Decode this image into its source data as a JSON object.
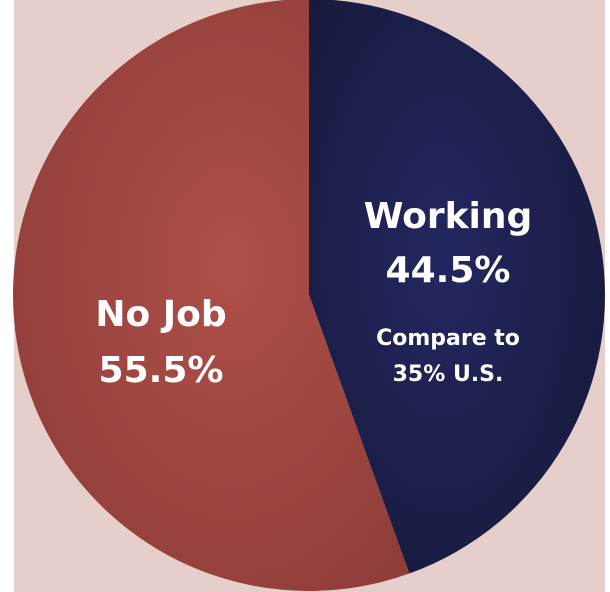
{
  "colors": {
    "background_panel": "#E6CFCA",
    "no_job_slice": "#A54943",
    "working_slice": "#1B1E4B",
    "label_text": "#FFFFFF"
  },
  "chart_data": {
    "type": "pie",
    "title": "",
    "slices": [
      {
        "label": "Working",
        "value": 44.5,
        "value_label": "44.5%",
        "note": "Compare to\n35% U.S."
      },
      {
        "label": "No Job",
        "value": 55.5,
        "value_label": "55.5%"
      }
    ],
    "note_lines": [
      "Compare to",
      "35% U.S."
    ]
  }
}
